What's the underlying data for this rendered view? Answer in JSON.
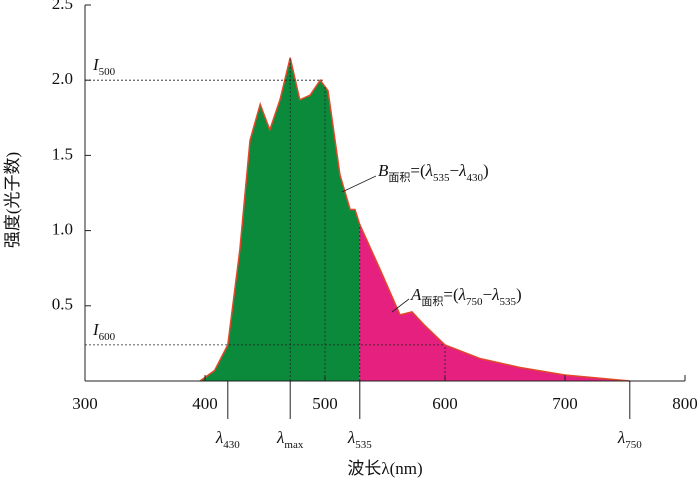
{
  "chart_data": {
    "type": "area",
    "x_label": "波长λ(nm)",
    "y_label": "强度(光子数)",
    "xlim": [
      300,
      800
    ],
    "ylim": [
      0,
      2.5
    ],
    "xticks": [
      300,
      400,
      500,
      600,
      700,
      800
    ],
    "yticks": [
      0.5,
      {
        "value": 1.0,
        "label": "1.0"
      },
      1.5,
      {
        "value": 2.0,
        "label": "2.0"
      },
      2.5
    ],
    "x": [
      395.8,
      408,
      419,
      429,
      437.5,
      446,
      454,
      462.5,
      471,
      479,
      487.5,
      496,
      502.5,
      512.5,
      521,
      525,
      529,
      546,
      562.5,
      572.5,
      583,
      600,
      629,
      662.5,
      700,
      754
    ],
    "values": [
      0,
      0.07,
      0.24,
      0.87,
      1.6,
      1.84,
      1.67,
      1.87,
      2.15,
      1.87,
      1.9,
      2.0,
      1.93,
      1.37,
      1.14,
      1.14,
      1.04,
      0.74,
      0.44,
      0.46,
      0.37,
      0.24,
      0.15,
      0.09,
      0.04,
      0
    ],
    "split_x": 529,
    "line_color": "#e04a2a",
    "fill_colors": [
      "#0a8a3a",
      "#e6207f"
    ],
    "guides": [
      471,
      500,
      529,
      600
    ],
    "reference_lines": [
      {
        "y": 2.0,
        "x_end": 500,
        "symbol": "I",
        "sub": "500"
      },
      {
        "y": 0.24,
        "x_end": 600,
        "symbol": "I",
        "sub": "600"
      }
    ],
    "markers": [
      {
        "x": 419,
        "symbol": "λ",
        "sub": "430"
      },
      {
        "x": 471,
        "symbol": "λ",
        "sub": "max"
      },
      {
        "x": 529,
        "symbol": "λ",
        "sub": "535"
      },
      {
        "x": 754,
        "symbol": "λ",
        "sub": "750"
      }
    ],
    "annotations": [
      {
        "parts": [
          {
            "text": "B",
            "style": "it"
          },
          {
            "text": "面积",
            "style": "sub"
          },
          {
            "text": "=(",
            "style": ""
          },
          {
            "text": "λ",
            "style": "it"
          },
          {
            "text": "535",
            "style": "sub"
          },
          {
            "text": "−",
            "style": ""
          },
          {
            "text": "λ",
            "style": "it"
          },
          {
            "text": "430",
            "style": "sub"
          },
          {
            "text": ")",
            "style": ""
          }
        ]
      },
      {
        "parts": [
          {
            "text": "A",
            "style": "it"
          },
          {
            "text": "面积",
            "style": "sub"
          },
          {
            "text": "=(",
            "style": ""
          },
          {
            "text": "λ",
            "style": "it"
          },
          {
            "text": "750",
            "style": "sub"
          },
          {
            "text": "−",
            "style": ""
          },
          {
            "text": "λ",
            "style": "it"
          },
          {
            "text": "535",
            "style": "sub"
          },
          {
            "text": ")",
            "style": ""
          }
        ]
      }
    ]
  }
}
